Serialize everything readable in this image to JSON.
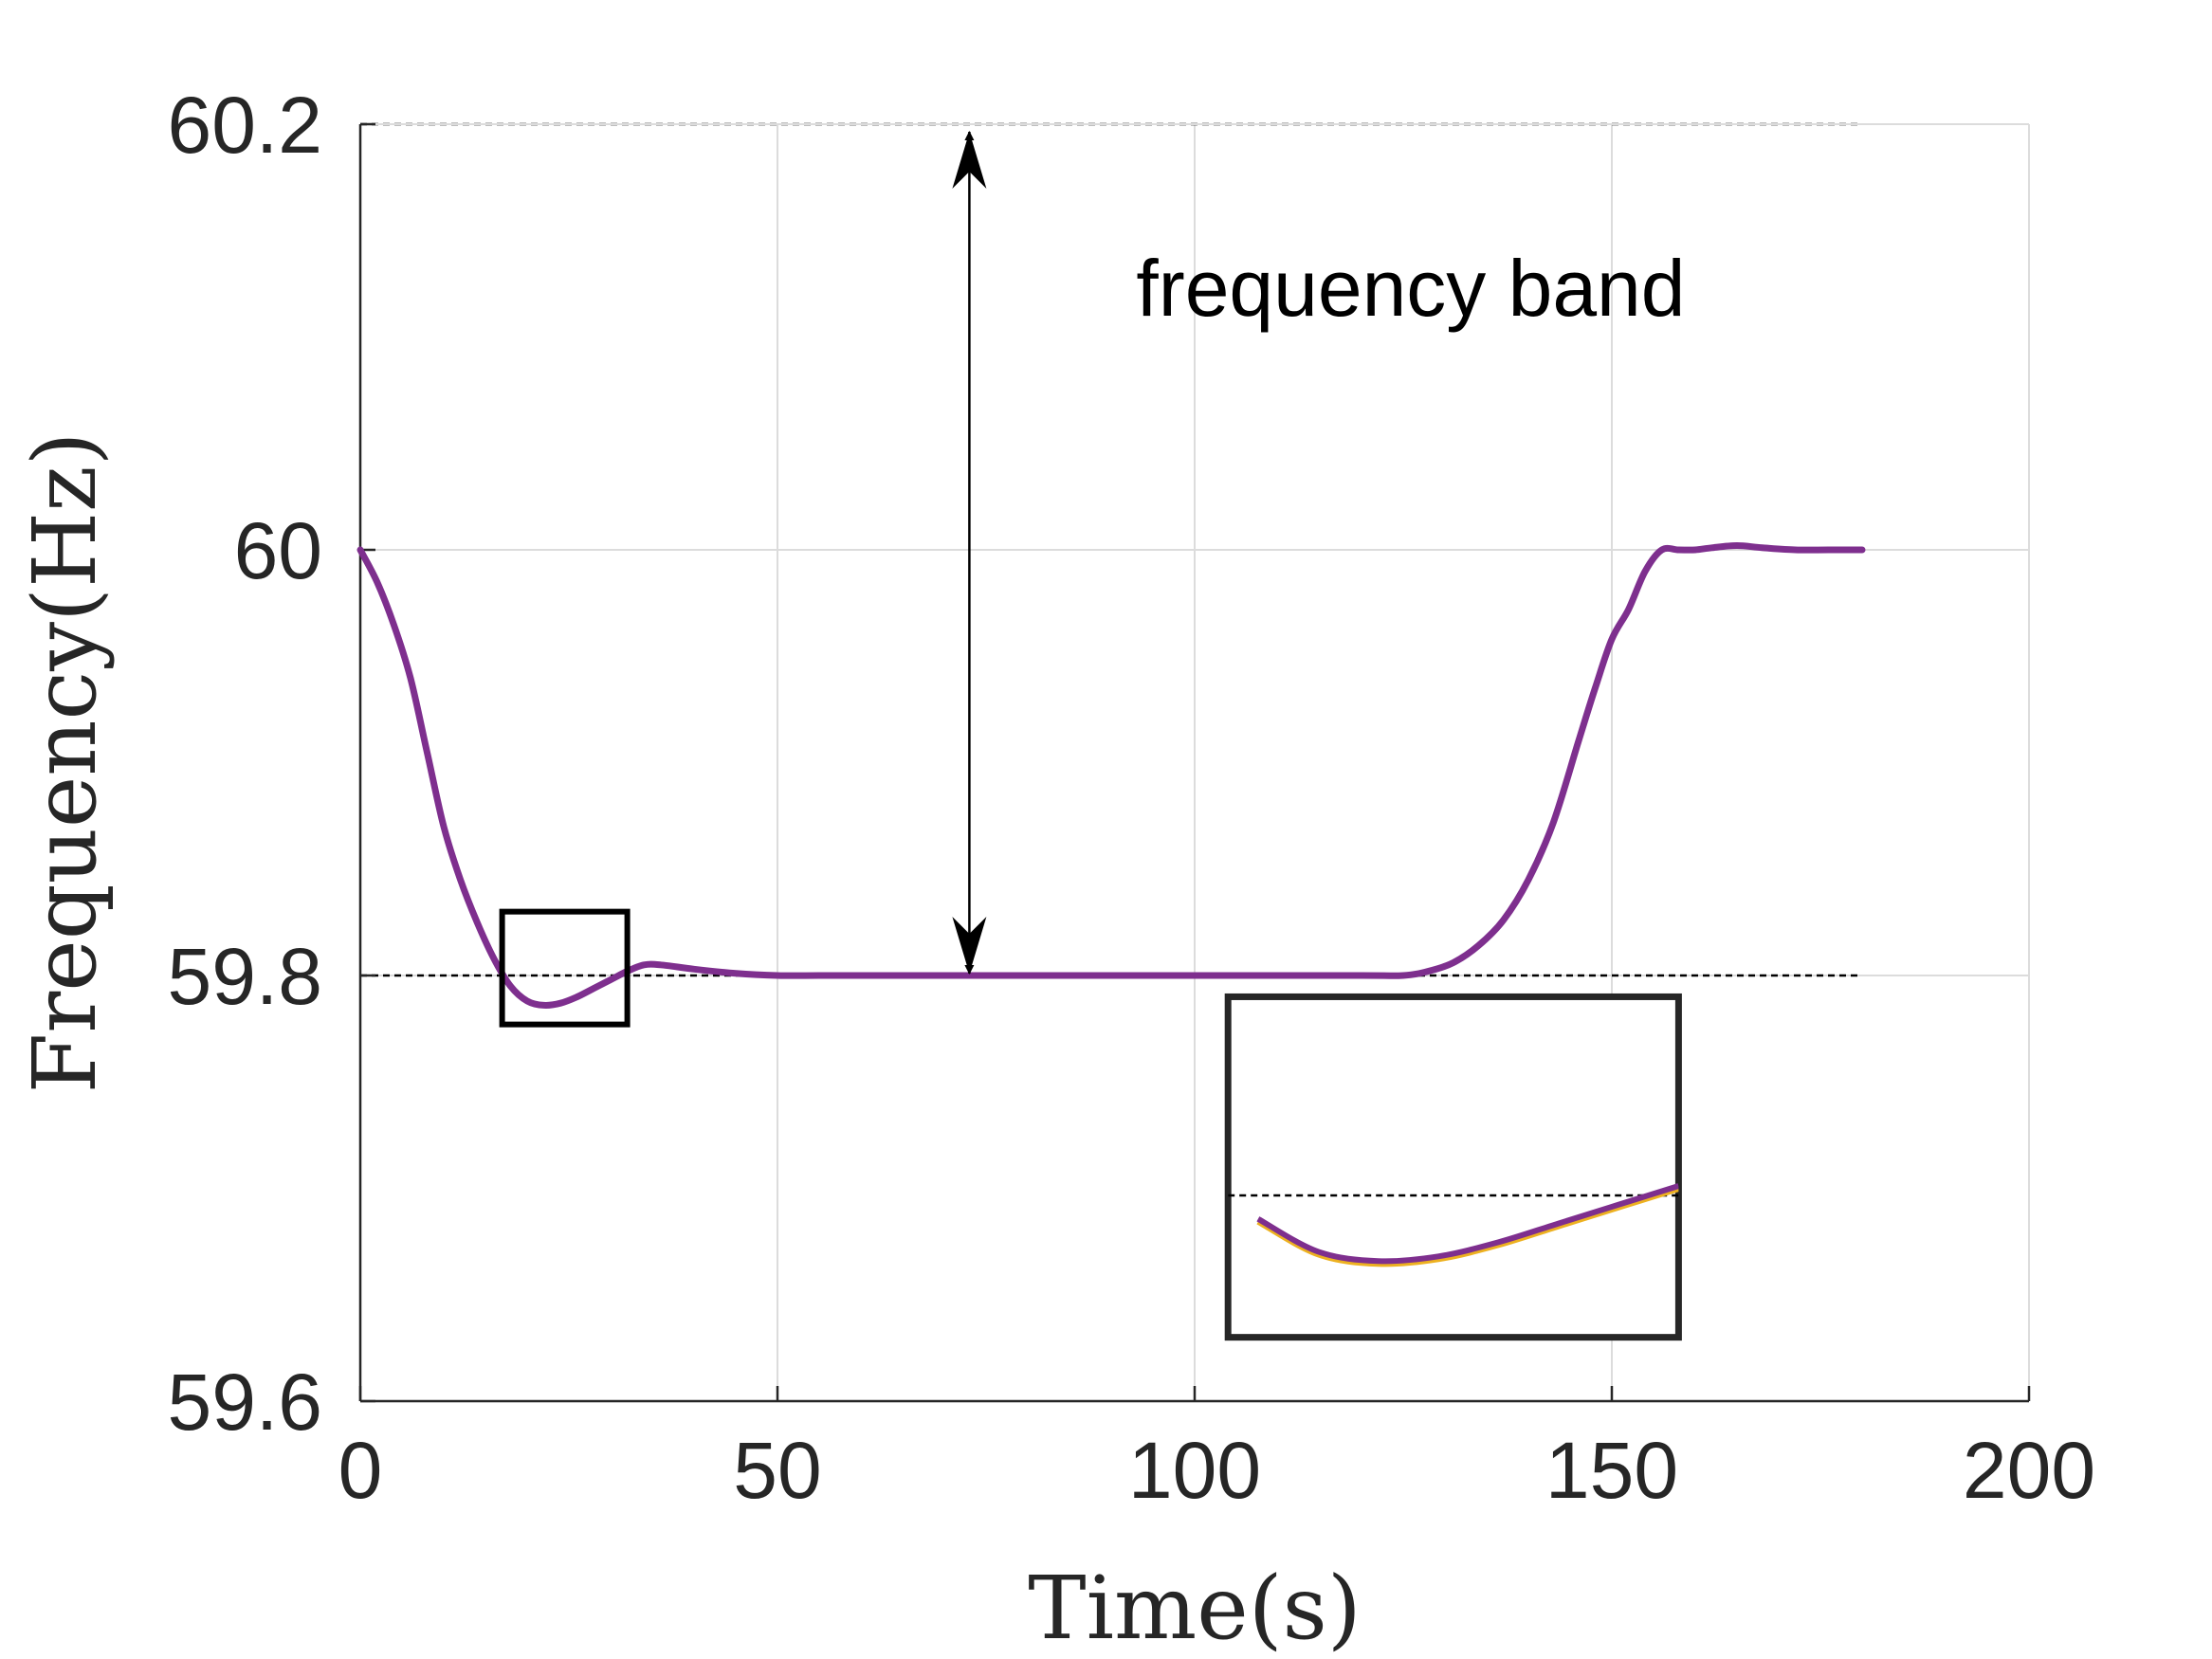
{
  "chart_data": {
    "type": "line",
    "title": "",
    "xlabel": "Time(s)",
    "ylabel": "Frequency(Hz)",
    "xlim": [
      0,
      200
    ],
    "ylim": [
      59.6,
      60.2
    ],
    "x_ticks": [
      "0",
      "50",
      "100",
      "150",
      "200"
    ],
    "y_ticks": [
      "59.6",
      "59.8",
      "60",
      "60.2"
    ],
    "x_tick_values": [
      0,
      50,
      100,
      150,
      200
    ],
    "y_tick_values": [
      59.6,
      59.8,
      60.0,
      60.2
    ],
    "grid": true,
    "series": [
      {
        "name": "frequency",
        "color": "#7E2F8E",
        "x": [
          0,
          2,
          4,
          6,
          8,
          10,
          12,
          14,
          16,
          18,
          20,
          22,
          24,
          26,
          28,
          30,
          32,
          34,
          36,
          40,
          45,
          50,
          55,
          60,
          70,
          80,
          100,
          120,
          125,
          128,
          131,
          134,
          137,
          140,
          143,
          146,
          148,
          150,
          152,
          154,
          156,
          158,
          160,
          162,
          165,
          168,
          172,
          176,
          180
        ],
        "values": [
          60.0,
          59.985,
          59.965,
          59.94,
          59.905,
          59.87,
          59.845,
          59.825,
          59.808,
          59.795,
          59.788,
          59.786,
          59.787,
          59.79,
          59.794,
          59.798,
          59.802,
          59.805,
          59.805,
          59.803,
          59.801,
          59.8,
          59.8,
          59.8,
          59.8,
          59.8,
          59.8,
          59.8,
          59.8,
          59.802,
          59.806,
          59.814,
          59.826,
          59.845,
          59.872,
          59.91,
          59.935,
          59.958,
          59.972,
          59.99,
          60.0,
          60.0,
          60.0,
          60.001,
          60.002,
          60.001,
          60.0,
          60.0,
          60.0
        ]
      }
    ],
    "reference_lines": [
      {
        "name": "upper-limit",
        "y": 60.2,
        "style": "dashed"
      },
      {
        "name": "lower-limit",
        "y": 59.8,
        "style": "dashed"
      }
    ],
    "arrow": {
      "x": 73,
      "y_from": 59.8,
      "y_to": 60.2
    },
    "annotations": [
      {
        "text": "frequency band",
        "x": 93,
        "y": 60.11
      }
    ],
    "zoom": {
      "source_x": [
        17,
        32
      ],
      "source_y": [
        59.777,
        59.83
      ],
      "inset_x_range": [
        104,
        158
      ],
      "inset_y_range": [
        59.63,
        59.79
      ]
    }
  }
}
